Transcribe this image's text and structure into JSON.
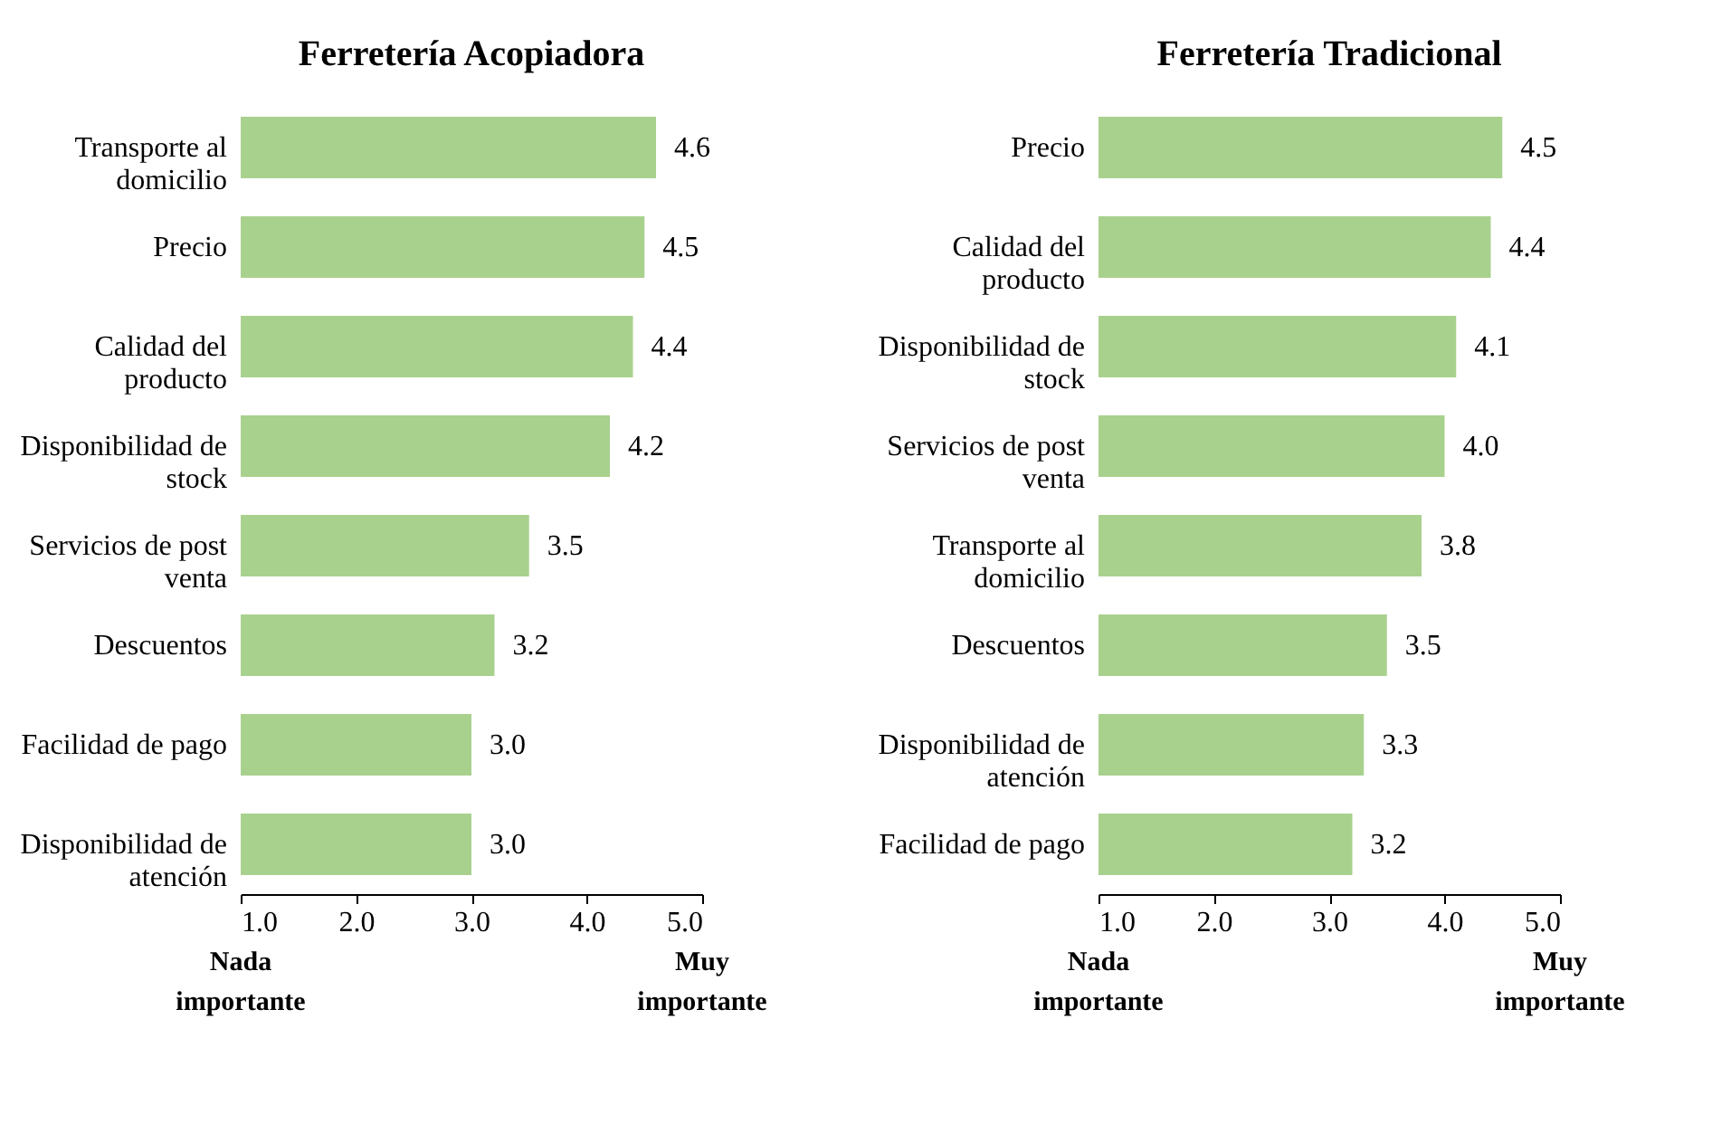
{
  "chart_data": [
    {
      "type": "bar",
      "orientation": "horizontal",
      "title": "Ferretería Acopiadora",
      "categories": [
        "Transporte al domicilio",
        "Precio",
        "Calidad del producto",
        "Disponibilidad de stock",
        "Servicios de post venta",
        "Descuentos",
        "Facilidad de pago",
        "Disponibilidad de atención"
      ],
      "values": [
        4.6,
        4.5,
        4.4,
        4.2,
        3.5,
        3.2,
        3.0,
        3.0
      ],
      "value_labels": [
        "4.6",
        "4.5",
        "4.4",
        "4.2",
        "3.5",
        "3.2",
        "3.0",
        "3.0"
      ],
      "color": "#a9d18e",
      "grid": false,
      "xlim": [
        1,
        5
      ],
      "xticks": [
        {
          "value": 1,
          "label": "1.0"
        },
        {
          "value": 2,
          "label": "2.0"
        },
        {
          "value": 3,
          "label": "3.0"
        },
        {
          "value": 4,
          "label": "4.0"
        },
        {
          "value": 5,
          "label": "5.0"
        }
      ],
      "annotations": [
        "Nada importante",
        "Muy importante"
      ]
    },
    {
      "type": "bar",
      "orientation": "horizontal",
      "title": "Ferretería Tradicional",
      "categories": [
        "Precio",
        "Calidad del producto",
        "Disponibilidad de stock",
        "Servicios de post venta",
        "Transporte al domicilio",
        "Descuentos",
        "Disponibilidad de atención",
        "Facilidad de pago"
      ],
      "values": [
        4.5,
        4.4,
        4.1,
        4.0,
        3.8,
        3.5,
        3.3,
        3.2
      ],
      "value_labels": [
        "4.5",
        "4.4",
        "4.1",
        "4.0",
        "3.8",
        "3.5",
        "3.3",
        "3.2"
      ],
      "color": "#a9d18e",
      "grid": false,
      "xlim": [
        1,
        5
      ],
      "xticks": [
        {
          "value": 1,
          "label": "1.0"
        },
        {
          "value": 2,
          "label": "2.0"
        },
        {
          "value": 3,
          "label": "3.0"
        },
        {
          "value": 4,
          "label": "4.0"
        },
        {
          "value": 5,
          "label": "5.0"
        }
      ],
      "annotations": [
        "Nada importante",
        "Muy importante"
      ]
    }
  ]
}
